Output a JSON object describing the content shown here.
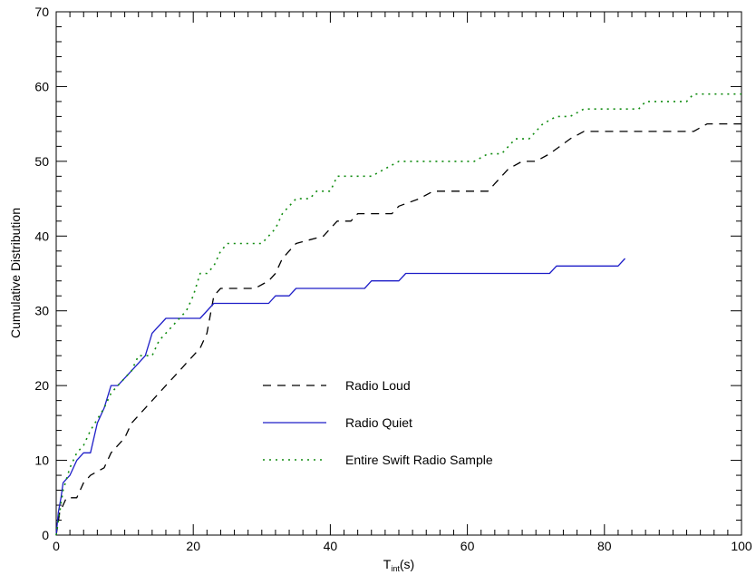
{
  "chart_data": {
    "type": "line",
    "title": "",
    "xlabel_main": "T",
    "xlabel_sub": "int",
    "xlabel_tail": "(s)",
    "ylabel": "Cumulative Distribution",
    "xlim": [
      0,
      100
    ],
    "ylim": [
      0,
      70
    ],
    "x_ticks": [
      "0",
      "20",
      "40",
      "60",
      "80",
      "100"
    ],
    "y_ticks": [
      "0",
      "10",
      "20",
      "30",
      "40",
      "50",
      "60",
      "70"
    ],
    "grid": false,
    "legend_position": "center",
    "series": [
      {
        "name": "Radio Loud",
        "color": "#000000",
        "style": "dashed",
        "points": [
          [
            0,
            0
          ],
          [
            0.5,
            3
          ],
          [
            1,
            4
          ],
          [
            1.5,
            5
          ],
          [
            3,
            5
          ],
          [
            4,
            7
          ],
          [
            5,
            8
          ],
          [
            7,
            9
          ],
          [
            8,
            11
          ],
          [
            10,
            13
          ],
          [
            11,
            15
          ],
          [
            13,
            17
          ],
          [
            15,
            19
          ],
          [
            16,
            20
          ],
          [
            18,
            22
          ],
          [
            19,
            23
          ],
          [
            21,
            25
          ],
          [
            22,
            27
          ],
          [
            23,
            32
          ],
          [
            24,
            33
          ],
          [
            29,
            33
          ],
          [
            31,
            34
          ],
          [
            32,
            35
          ],
          [
            33,
            37
          ],
          [
            35,
            39
          ],
          [
            39,
            40
          ],
          [
            41,
            42
          ],
          [
            43,
            42
          ],
          [
            44,
            43
          ],
          [
            49,
            43
          ],
          [
            50,
            44
          ],
          [
            53,
            45
          ],
          [
            55,
            46
          ],
          [
            63,
            46
          ],
          [
            64,
            47
          ],
          [
            66,
            49
          ],
          [
            68,
            50
          ],
          [
            70,
            50
          ],
          [
            72,
            51
          ],
          [
            75,
            53
          ],
          [
            77,
            54
          ],
          [
            93,
            54
          ],
          [
            95,
            55
          ],
          [
            100,
            55
          ]
        ]
      },
      {
        "name": "Radio Quiet",
        "color": "#1e1ec8",
        "style": "solid",
        "points": [
          [
            0,
            0
          ],
          [
            0.3,
            3
          ],
          [
            0.7,
            5
          ],
          [
            1,
            7
          ],
          [
            2,
            8
          ],
          [
            3,
            10
          ],
          [
            4,
            11
          ],
          [
            5,
            11
          ],
          [
            6,
            15
          ],
          [
            7,
            17
          ],
          [
            8,
            20
          ],
          [
            9,
            20
          ],
          [
            11,
            22
          ],
          [
            13,
            24
          ],
          [
            14,
            27
          ],
          [
            16,
            29
          ],
          [
            21,
            29
          ],
          [
            23,
            31
          ],
          [
            31,
            31
          ],
          [
            32,
            32
          ],
          [
            34,
            32
          ],
          [
            35,
            33
          ],
          [
            45,
            33
          ],
          [
            46,
            34
          ],
          [
            50,
            34
          ],
          [
            51,
            35
          ],
          [
            72,
            35
          ],
          [
            73,
            36
          ],
          [
            82,
            36
          ],
          [
            83,
            37
          ]
        ]
      },
      {
        "name": "Entire Swift Radio Sample",
        "color": "#108c10",
        "style": "dotted",
        "points": [
          [
            0,
            0
          ],
          [
            0.5,
            3
          ],
          [
            1,
            6
          ],
          [
            2,
            9
          ],
          [
            3,
            11
          ],
          [
            4,
            12
          ],
          [
            5,
            14
          ],
          [
            7,
            17
          ],
          [
            8,
            19
          ],
          [
            9,
            20
          ],
          [
            11,
            22
          ],
          [
            12,
            24
          ],
          [
            14,
            24
          ],
          [
            15,
            26
          ],
          [
            17,
            28
          ],
          [
            19,
            30
          ],
          [
            20,
            32
          ],
          [
            21,
            35
          ],
          [
            22,
            35
          ],
          [
            23,
            36
          ],
          [
            24,
            38
          ],
          [
            25,
            39
          ],
          [
            30,
            39
          ],
          [
            32,
            41
          ],
          [
            33,
            43
          ],
          [
            34,
            44
          ],
          [
            35,
            45
          ],
          [
            37,
            45
          ],
          [
            38,
            46
          ],
          [
            40,
            46
          ],
          [
            41,
            48
          ],
          [
            46,
            48
          ],
          [
            48,
            49
          ],
          [
            50,
            50
          ],
          [
            61,
            50
          ],
          [
            63,
            51
          ],
          [
            65,
            51
          ],
          [
            67,
            53
          ],
          [
            69,
            53
          ],
          [
            71,
            55
          ],
          [
            73,
            56
          ],
          [
            75,
            56
          ],
          [
            77,
            57
          ],
          [
            85,
            57
          ],
          [
            86,
            58
          ],
          [
            92,
            58
          ],
          [
            93,
            59
          ],
          [
            100,
            59
          ]
        ]
      }
    ]
  }
}
